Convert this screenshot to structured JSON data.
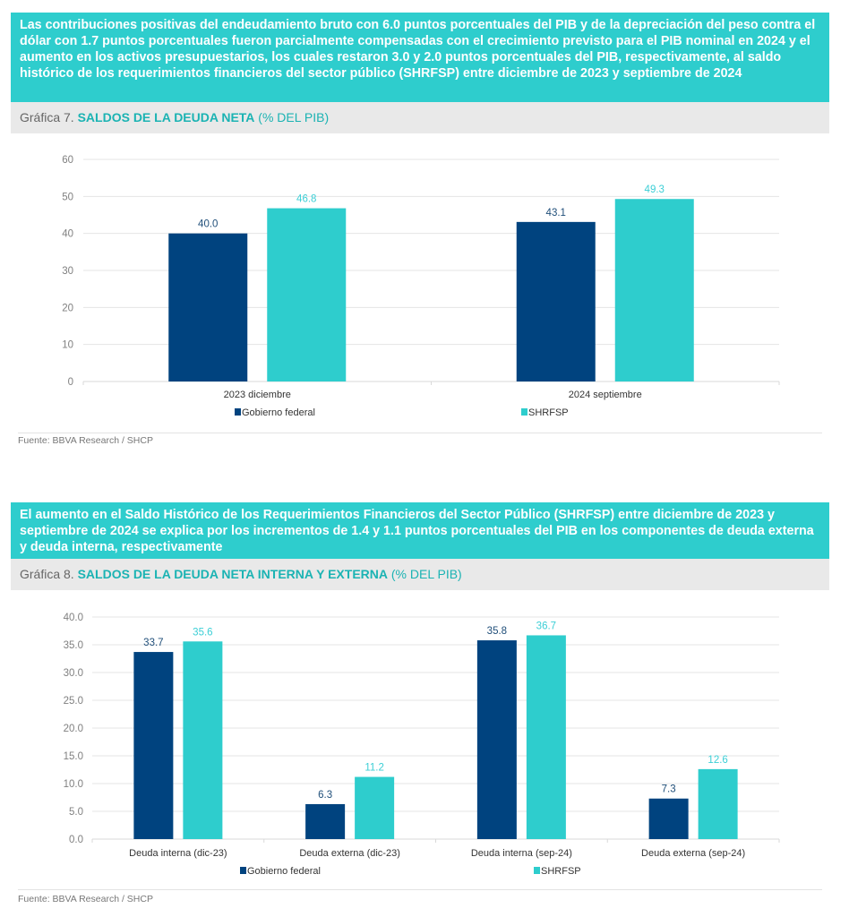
{
  "section1": {
    "headline": "Las contribuciones positivas del endeudamiento bruto con 6.0 puntos porcentuales del PIB y de la depreciación del peso contra el dólar con 1.7 puntos porcentuales fueron parcialmente compensadas con el crecimiento previsto para el PIB nominal en 2024 y el aumento en los activos presupuestarios, los cuales restaron 3.0 y 2.0 puntos porcentuales del PIB, respectivamente, al saldo histórico de los requerimientos financieros del sector público (SHRFSP) entre diciembre de 2023 y septiembre de 2024",
    "caption_number": "Gráfica 7. ",
    "caption_title": "SALDOS DE LA DEUDA NETA",
    "caption_unit": " (% DEL PIB)",
    "source": "Fuente: BBVA Research / SHCP"
  },
  "section2": {
    "headline": "El aumento en el Saldo Histórico de los Requerimientos Financieros del Sector Público (SHRFSP) entre diciembre de 2023 y septiembre de 2024 se explica por los incrementos de 1.4 y 1.1 puntos porcentuales del PIB en los componentes de deuda externa y deuda interna, respectivamente",
    "caption_number": "Gráfica 8. ",
    "caption_title": "SALDOS DE LA DEUDA NETA INTERNA Y EXTERNA",
    "caption_unit": " (% DEL PIB)",
    "source": "Fuente: BBVA Research / SHCP"
  },
  "colors": {
    "gobierno": "#00437f",
    "shrfsp": "#2ecdcd",
    "accent": "#2ecdcd"
  },
  "chart_data": [
    {
      "type": "bar",
      "title": "Gráfica 7. SALDOS DE LA DEUDA NETA (% DEL PIB)",
      "xlabel": "",
      "ylabel": "",
      "categories": [
        "2023 diciembre",
        "2024 septiembre"
      ],
      "series": [
        {
          "name": "Gobierno federal",
          "values": [
            40.0,
            43.1
          ],
          "labels": [
            "40.0",
            "43.1"
          ]
        },
        {
          "name": "SHRFSP",
          "values": [
            46.8,
            49.3
          ],
          "labels": [
            "46.8",
            "49.3"
          ]
        }
      ],
      "ylim": [
        0,
        60
      ],
      "yticks": [
        0,
        10,
        20,
        30,
        40,
        50,
        60
      ],
      "ytick_labels": [
        "0",
        "10",
        "20",
        "30",
        "40",
        "50",
        "60"
      ],
      "grid": true,
      "legend": "bottom"
    },
    {
      "type": "bar",
      "title": "Gráfica 8. SALDOS DE LA DEUDA NETA INTERNA Y EXTERNA (% DEL PIB)",
      "xlabel": "",
      "ylabel": "",
      "categories": [
        "Deuda interna (dic-23)",
        "Deuda externa (dic-23)",
        "Deuda interna (sep-24)",
        "Deuda externa (sep-24)"
      ],
      "series": [
        {
          "name": "Gobierno federal",
          "values": [
            33.7,
            6.3,
            35.8,
            7.3
          ],
          "labels": [
            "33.7",
            "6.3",
            "35.8",
            "7.3"
          ]
        },
        {
          "name": "SHRFSP",
          "values": [
            35.6,
            11.2,
            36.7,
            12.6
          ],
          "labels": [
            "35.6",
            "11.2",
            "36.7",
            "12.6"
          ]
        }
      ],
      "ylim": [
        0,
        40
      ],
      "yticks": [
        0,
        5,
        10,
        15,
        20,
        25,
        30,
        35,
        40
      ],
      "ytick_labels": [
        "0.0",
        "5.0",
        "10.0",
        "15.0",
        "20.0",
        "25.0",
        "30.0",
        "35.0",
        "40.0"
      ],
      "grid": true,
      "legend": "bottom"
    }
  ]
}
